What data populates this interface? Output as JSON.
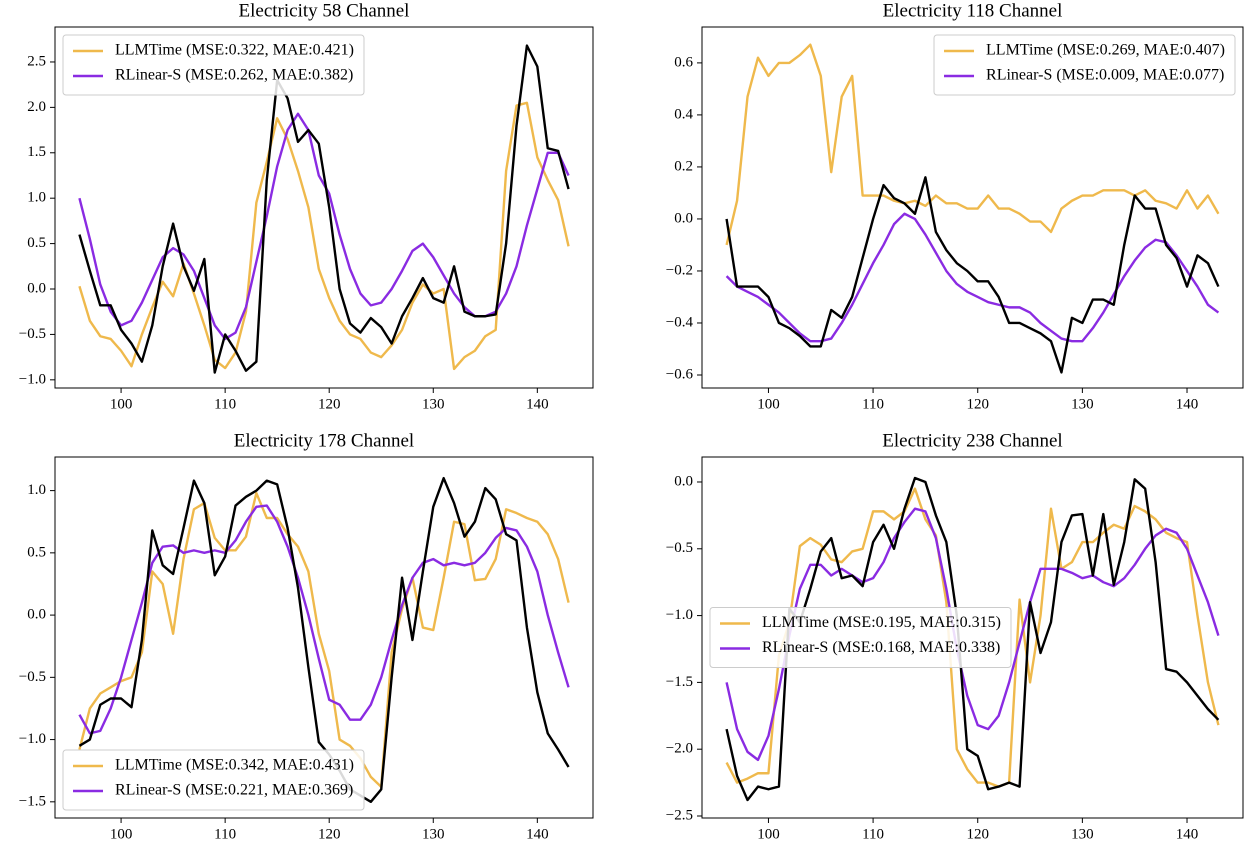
{
  "chart_data": [
    {
      "type": "line",
      "title": "Electricity 58 Channel",
      "legend": "upper left",
      "x": [
        96,
        97,
        98,
        99,
        100,
        101,
        102,
        103,
        104,
        105,
        106,
        107,
        108,
        109,
        110,
        111,
        112,
        113,
        114,
        115,
        116,
        117,
        118,
        119,
        120,
        121,
        122,
        123,
        124,
        125,
        126,
        127,
        128,
        129,
        130,
        131,
        132,
        133,
        134,
        135,
        136,
        137,
        138,
        139,
        140,
        141,
        142,
        143
      ],
      "xlim": [
        93.65,
        145.35
      ],
      "xticks": [
        100,
        110,
        120,
        130,
        140
      ],
      "ylim": [
        -1.09,
        2.885
      ],
      "yticks": [
        {
          "value": -1.0,
          "label": "−1.0"
        },
        {
          "value": -0.5,
          "label": "−0.5"
        },
        {
          "value": 0.0,
          "label": "0.0"
        },
        0.5,
        {
          "value": 1.0,
          "label": "1.0"
        },
        1.5,
        {
          "value": 2.0,
          "label": "2.0"
        },
        2.5
      ],
      "series": [
        {
          "name": "LLMTime (MSE:0.322, MAE:0.421)",
          "color": "#efb94c",
          "values": [
            0.03,
            -0.35,
            -0.52,
            -0.55,
            -0.68,
            -0.85,
            -0.5,
            -0.2,
            0.08,
            -0.08,
            0.28,
            -0.05,
            -0.4,
            -0.78,
            -0.87,
            -0.7,
            -0.25,
            0.95,
            1.4,
            1.88,
            1.65,
            1.3,
            0.9,
            0.22,
            -0.1,
            -0.35,
            -0.5,
            -0.55,
            -0.7,
            -0.75,
            -0.62,
            -0.45,
            -0.15,
            0.05,
            -0.05,
            0.0,
            -0.88,
            -0.75,
            -0.68,
            -0.52,
            -0.45,
            1.3,
            2.02,
            2.05,
            1.45,
            1.2,
            0.98,
            0.47
          ]
        },
        {
          "name": "RLinear-S (MSE:0.262, MAE:0.382)",
          "color": "#8a2be2",
          "values": [
            1.0,
            0.55,
            0.05,
            -0.25,
            -0.4,
            -0.35,
            -0.15,
            0.1,
            0.35,
            0.45,
            0.38,
            0.2,
            -0.1,
            -0.4,
            -0.55,
            -0.48,
            -0.2,
            0.3,
            0.8,
            1.35,
            1.75,
            1.93,
            1.75,
            1.25,
            1.05,
            0.6,
            0.22,
            -0.05,
            -0.18,
            -0.15,
            0.0,
            0.2,
            0.42,
            0.5,
            0.35,
            0.15,
            -0.05,
            -0.2,
            -0.3,
            -0.3,
            -0.25,
            -0.05,
            0.25,
            0.7,
            1.1,
            1.5,
            1.5,
            1.25
          ]
        },
        {
          "color": "#000000",
          "values": [
            0.6,
            0.2,
            -0.18,
            -0.18,
            -0.45,
            -0.6,
            -0.8,
            -0.4,
            0.25,
            0.72,
            0.25,
            -0.02,
            0.33,
            -0.92,
            -0.5,
            -0.68,
            -0.9,
            -0.8,
            1.2,
            2.3,
            2.1,
            1.62,
            1.75,
            1.6,
            0.9,
            0.0,
            -0.38,
            -0.48,
            -0.32,
            -0.42,
            -0.6,
            -0.3,
            -0.1,
            0.12,
            -0.1,
            -0.15,
            0.25,
            -0.25,
            -0.3,
            -0.3,
            -0.28,
            0.5,
            1.8,
            2.68,
            2.45,
            1.55,
            1.52,
            1.1
          ]
        }
      ]
    },
    {
      "type": "line",
      "title": "Electricity 118 Channel",
      "legend": "upper right",
      "x": [
        96,
        97,
        98,
        99,
        100,
        101,
        102,
        103,
        104,
        105,
        106,
        107,
        108,
        109,
        110,
        111,
        112,
        113,
        114,
        115,
        116,
        117,
        118,
        119,
        120,
        121,
        122,
        123,
        124,
        125,
        126,
        127,
        128,
        129,
        130,
        131,
        132,
        133,
        134,
        135,
        136,
        137,
        138,
        139,
        140,
        141,
        142,
        143
      ],
      "xlim": [
        93.65,
        145.35
      ],
      "xticks": [
        100,
        110,
        120,
        130,
        140
      ],
      "ylim": [
        -0.65,
        0.738
      ],
      "yticks": [
        {
          "value": -0.6,
          "label": "−0.6"
        },
        {
          "value": -0.4,
          "label": "−0.4"
        },
        {
          "value": -0.2,
          "label": "−0.2"
        },
        {
          "value": 0.0,
          "label": "0.0"
        },
        0.2,
        0.4,
        0.6
      ],
      "series": [
        {
          "name": "LLMTime (MSE:0.269, MAE:0.407)",
          "color": "#efb94c",
          "values": [
            -0.1,
            0.07,
            0.47,
            0.62,
            0.55,
            0.6,
            0.6,
            0.63,
            0.67,
            0.55,
            0.18,
            0.47,
            0.55,
            0.09,
            0.09,
            0.09,
            0.07,
            0.06,
            0.07,
            0.05,
            0.09,
            0.06,
            0.06,
            0.04,
            0.04,
            0.09,
            0.04,
            0.04,
            0.02,
            -0.01,
            -0.01,
            -0.05,
            0.04,
            0.07,
            0.09,
            0.09,
            0.11,
            0.11,
            0.11,
            0.09,
            0.11,
            0.07,
            0.06,
            0.04,
            0.11,
            0.04,
            0.09,
            0.02
          ]
        },
        {
          "name": "RLinear-S (MSE:0.009, MAE:0.077)",
          "color": "#8a2be2",
          "values": [
            -0.22,
            -0.26,
            -0.28,
            -0.3,
            -0.33,
            -0.36,
            -0.4,
            -0.44,
            -0.47,
            -0.47,
            -0.46,
            -0.4,
            -0.33,
            -0.25,
            -0.17,
            -0.1,
            -0.02,
            0.02,
            0.0,
            -0.06,
            -0.13,
            -0.2,
            -0.25,
            -0.28,
            -0.3,
            -0.32,
            -0.33,
            -0.34,
            -0.34,
            -0.36,
            -0.4,
            -0.43,
            -0.46,
            -0.47,
            -0.47,
            -0.42,
            -0.36,
            -0.29,
            -0.22,
            -0.16,
            -0.11,
            -0.08,
            -0.09,
            -0.14,
            -0.2,
            -0.26,
            -0.33,
            -0.36
          ]
        },
        {
          "color": "#000000",
          "values": [
            0.0,
            -0.26,
            -0.26,
            -0.26,
            -0.3,
            -0.4,
            -0.42,
            -0.45,
            -0.49,
            -0.49,
            -0.35,
            -0.38,
            -0.3,
            -0.15,
            0.0,
            0.13,
            0.08,
            0.06,
            0.02,
            0.16,
            -0.05,
            -0.12,
            -0.17,
            -0.2,
            -0.24,
            -0.24,
            -0.3,
            -0.4,
            -0.4,
            -0.42,
            -0.44,
            -0.47,
            -0.59,
            -0.38,
            -0.4,
            -0.31,
            -0.31,
            -0.33,
            -0.1,
            0.09,
            0.04,
            0.04,
            -0.1,
            -0.15,
            -0.26,
            -0.14,
            -0.17,
            -0.26
          ]
        }
      ]
    },
    {
      "type": "line",
      "title": "Electricity 178 Channel",
      "legend": "lower left",
      "x": [
        96,
        97,
        98,
        99,
        100,
        101,
        102,
        103,
        104,
        105,
        106,
        107,
        108,
        109,
        110,
        111,
        112,
        113,
        114,
        115,
        116,
        117,
        118,
        119,
        120,
        121,
        122,
        123,
        124,
        125,
        126,
        127,
        128,
        129,
        130,
        131,
        132,
        133,
        134,
        135,
        136,
        137,
        138,
        139,
        140,
        141,
        142,
        143
      ],
      "xlim": [
        93.65,
        145.35
      ],
      "xticks": [
        100,
        110,
        120,
        130,
        140
      ],
      "ylim": [
        -1.63,
        1.27
      ],
      "yticks": [
        {
          "value": -1.5,
          "label": "−1.5"
        },
        {
          "value": -1.0,
          "label": "−1.0"
        },
        {
          "value": -0.5,
          "label": "−0.5"
        },
        {
          "value": 0.0,
          "label": "0.0"
        },
        0.5,
        {
          "value": 1.0,
          "label": "1.0"
        }
      ],
      "series": [
        {
          "name": "LLMTime (MSE:0.342, MAE:0.431)",
          "color": "#efb94c",
          "values": [
            -1.08,
            -0.75,
            -0.63,
            -0.58,
            -0.53,
            -0.5,
            -0.3,
            0.35,
            0.25,
            -0.15,
            0.45,
            0.85,
            0.9,
            0.62,
            0.52,
            0.52,
            0.63,
            0.98,
            0.78,
            0.78,
            0.65,
            0.55,
            0.35,
            -0.15,
            -0.45,
            -1.0,
            -1.05,
            -1.15,
            -1.3,
            -1.38,
            -0.3,
            0.05,
            0.3,
            -0.1,
            -0.12,
            0.3,
            0.75,
            0.73,
            0.28,
            0.29,
            0.45,
            0.85,
            0.82,
            0.78,
            0.75,
            0.65,
            0.45,
            0.1
          ]
        },
        {
          "name": "RLinear-S (MSE:0.221, MAE:0.369)",
          "color": "#8a2be2",
          "values": [
            -0.8,
            -0.95,
            -0.93,
            -0.75,
            -0.5,
            -0.2,
            0.1,
            0.42,
            0.55,
            0.56,
            0.5,
            0.52,
            0.5,
            0.52,
            0.5,
            0.6,
            0.75,
            0.87,
            0.88,
            0.75,
            0.55,
            0.3,
            0.0,
            -0.35,
            -0.68,
            -0.72,
            -0.84,
            -0.84,
            -0.72,
            -0.5,
            -0.2,
            0.08,
            0.3,
            0.42,
            0.45,
            0.4,
            0.42,
            0.4,
            0.42,
            0.5,
            0.62,
            0.7,
            0.68,
            0.55,
            0.35,
            0.0,
            -0.3,
            -0.58
          ]
        },
        {
          "color": "#000000",
          "values": [
            -1.05,
            -1.0,
            -0.72,
            -0.67,
            -0.67,
            -0.74,
            -0.2,
            0.68,
            0.4,
            0.33,
            0.7,
            1.08,
            0.9,
            0.32,
            0.47,
            0.88,
            0.95,
            1.0,
            1.08,
            1.05,
            0.7,
            0.22,
            -0.42,
            -1.02,
            -1.12,
            -1.25,
            -1.4,
            -1.45,
            -1.5,
            -1.4,
            -0.5,
            0.3,
            -0.2,
            0.35,
            0.87,
            1.1,
            0.9,
            0.63,
            0.75,
            1.02,
            0.93,
            0.65,
            0.6,
            -0.1,
            -0.62,
            -0.95,
            -1.08,
            -1.22
          ]
        }
      ]
    },
    {
      "type": "line",
      "title": "Electricity 238 Channel",
      "legend": "center left",
      "x": [
        96,
        97,
        98,
        99,
        100,
        101,
        102,
        103,
        104,
        105,
        106,
        107,
        108,
        109,
        110,
        111,
        112,
        113,
        114,
        115,
        116,
        117,
        118,
        119,
        120,
        121,
        122,
        123,
        124,
        125,
        126,
        127,
        128,
        129,
        130,
        131,
        132,
        133,
        134,
        135,
        136,
        137,
        138,
        139,
        140,
        141,
        142,
        143
      ],
      "xlim": [
        93.65,
        145.35
      ],
      "xticks": [
        100,
        110,
        120,
        130,
        140
      ],
      "ylim": [
        -2.515,
        0.187
      ],
      "yticks": [
        {
          "value": -2.5,
          "label": "−2.5"
        },
        {
          "value": -2.0,
          "label": "−2.0"
        },
        {
          "value": -1.5,
          "label": "−1.5"
        },
        {
          "value": -1.0,
          "label": "−1.0"
        },
        {
          "value": -0.5,
          "label": "−0.5"
        },
        {
          "value": 0.0,
          "label": "0.0"
        }
      ],
      "series": [
        {
          "name": "LLMTime (MSE:0.195, MAE:0.315)",
          "color": "#efb94c",
          "values": [
            -2.1,
            -2.25,
            -2.22,
            -2.18,
            -2.18,
            -1.3,
            -1.05,
            -0.48,
            -0.42,
            -0.47,
            -0.58,
            -0.6,
            -0.52,
            -0.5,
            -0.22,
            -0.22,
            -0.28,
            -0.22,
            -0.05,
            -0.28,
            -0.4,
            -0.9,
            -2.0,
            -2.15,
            -2.25,
            -2.25,
            -2.28,
            -2.25,
            -0.88,
            -1.5,
            -1.0,
            -0.2,
            -0.65,
            -0.6,
            -0.45,
            -0.45,
            -0.38,
            -0.32,
            -0.35,
            -0.18,
            -0.22,
            -0.28,
            -0.38,
            -0.42,
            -0.45,
            -1.0,
            -1.5,
            -1.82
          ]
        },
        {
          "name": "RLinear-S (MSE:0.168, MAE:0.338)",
          "color": "#8a2be2",
          "values": [
            -1.5,
            -1.85,
            -2.02,
            -2.08,
            -1.9,
            -1.55,
            -1.15,
            -0.8,
            -0.62,
            -0.62,
            -0.7,
            -0.65,
            -0.7,
            -0.75,
            -0.72,
            -0.6,
            -0.42,
            -0.3,
            -0.2,
            -0.22,
            -0.42,
            -0.8,
            -1.25,
            -1.6,
            -1.82,
            -1.85,
            -1.75,
            -1.5,
            -1.2,
            -0.9,
            -0.65,
            -0.65,
            -0.65,
            -0.68,
            -0.72,
            -0.7,
            -0.75,
            -0.78,
            -0.72,
            -0.62,
            -0.5,
            -0.4,
            -0.35,
            -0.38,
            -0.5,
            -0.7,
            -0.9,
            -1.15
          ]
        },
        {
          "color": "#000000",
          "values": [
            -1.85,
            -2.2,
            -2.38,
            -2.28,
            -2.3,
            -2.28,
            -0.95,
            -1.05,
            -0.8,
            -0.52,
            -0.42,
            -0.72,
            -0.7,
            -0.78,
            -0.45,
            -0.32,
            -0.5,
            -0.2,
            0.03,
            0.0,
            -0.25,
            -0.45,
            -1.0,
            -2.0,
            -2.05,
            -2.3,
            -2.28,
            -2.25,
            -2.28,
            -0.9,
            -1.28,
            -1.05,
            -0.45,
            -0.25,
            -0.24,
            -0.7,
            -0.24,
            -0.77,
            -0.45,
            0.02,
            -0.05,
            -0.6,
            -1.4,
            -1.42,
            -1.5,
            -1.6,
            -1.7,
            -1.78
          ]
        }
      ]
    }
  ]
}
